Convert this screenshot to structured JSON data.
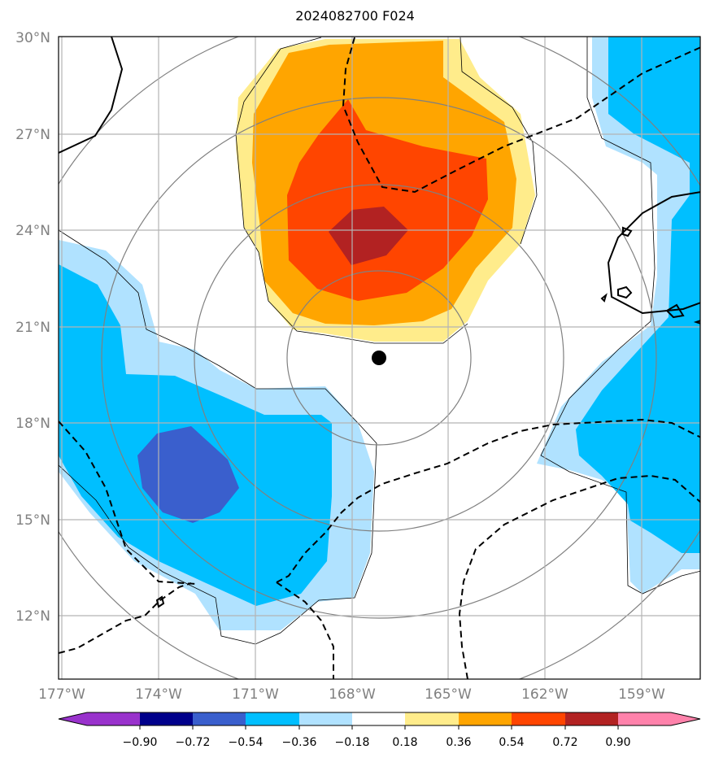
{
  "title": "2024082700 F024",
  "latitude_labels": [
    "30°N",
    "27°N",
    "24°N",
    "21°N",
    "18°N",
    "15°N",
    "12°N"
  ],
  "longitude_labels": [
    "177°W",
    "174°W",
    "171°W",
    "168°W",
    "165°W",
    "162°W",
    "159°W"
  ],
  "colorbar": {
    "tick_labels": [
      "−0.90",
      "−0.72",
      "−0.54",
      "−0.36",
      "−0.18",
      "0.18",
      "0.36",
      "0.54",
      "0.72",
      "0.90"
    ],
    "colors": [
      "#9932CC",
      "#00008B",
      "#3A5FCD",
      "#00BFFF",
      "#B0E2FF",
      "#FFFFFF",
      "#FFEC8B",
      "#FFA500",
      "#FF4500",
      "#B22222",
      "#FF82AB"
    ]
  },
  "field_colors": {
    "dark_red": "#B22222",
    "red": "#FF4500",
    "orange": "#FFA500",
    "light_yellow": "#FFEC8B",
    "light_blue": "#B0E2FF",
    "blue": "#00BFFF",
    "royal_blue": "#3A5FCD"
  },
  "storm_center_marker": "black-dot"
}
